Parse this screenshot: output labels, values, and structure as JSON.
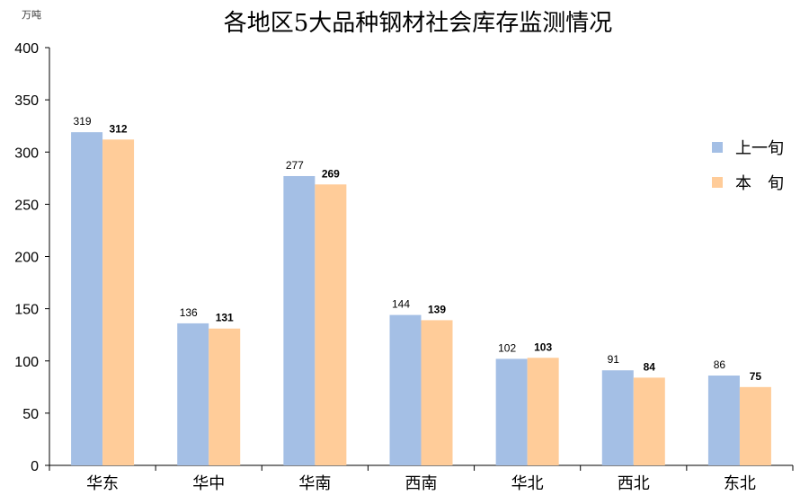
{
  "chart_data": {
    "type": "bar",
    "title": "各地区5大品种钢材社会库存监测情况",
    "unit_label": "万吨",
    "xlabel": "",
    "ylabel": "",
    "ylim": [
      0,
      400
    ],
    "y_ticks": [
      0,
      50,
      100,
      150,
      200,
      250,
      300,
      350,
      400
    ],
    "categories": [
      "华东",
      "华中",
      "华南",
      "西南",
      "华北",
      "西北",
      "东北"
    ],
    "series": [
      {
        "name": "上一旬",
        "values": [
          319,
          136,
          277,
          144,
          102,
          91,
          86
        ],
        "color": "#A4BFE5"
      },
      {
        "name": "本　旬",
        "values": [
          312,
          131,
          269,
          139,
          103,
          84,
          75
        ],
        "color": "#FFCC99"
      }
    ],
    "grid": false,
    "legend_position": "right"
  }
}
